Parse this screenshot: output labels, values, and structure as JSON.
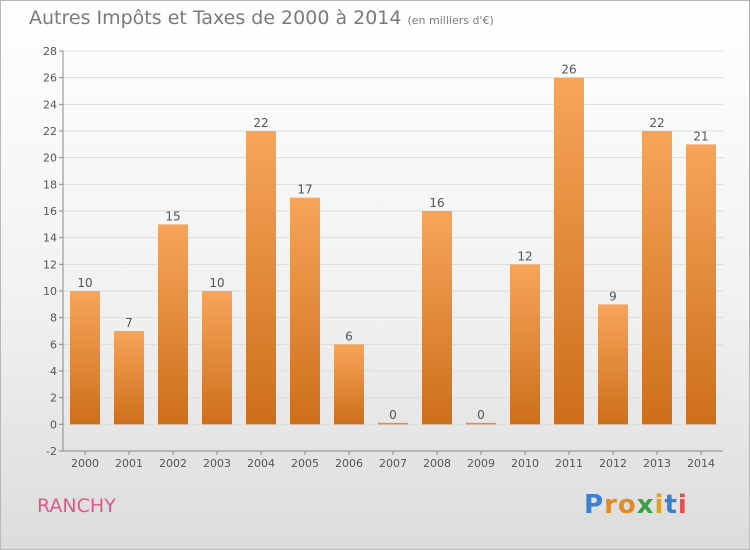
{
  "header": {
    "title": "Autres Impôts et Taxes de 2000 à 2014",
    "subtitle": "(en milliers d'€)"
  },
  "footer": {
    "commune": "RANCHY",
    "logo": "Proxiti"
  },
  "colors": {
    "bar_light": "#f7a55a",
    "bar_dark": "#cd6e1c",
    "grid": "#dddddd",
    "text": "#555555"
  },
  "chart_data": {
    "type": "bar",
    "title": "Autres Impôts et Taxes de 2000 à 2014",
    "subtitle": "(en milliers d'€)",
    "categories": [
      "2000",
      "2001",
      "2002",
      "2003",
      "2004",
      "2005",
      "2006",
      "2007",
      "2008",
      "2009",
      "2010",
      "2011",
      "2012",
      "2013",
      "2014"
    ],
    "values": [
      10,
      7,
      15,
      10,
      22,
      17,
      6,
      0,
      16,
      0,
      12,
      26,
      9,
      22,
      21
    ],
    "ylim": [
      -2,
      28
    ],
    "yticks": [
      -2,
      0,
      2,
      4,
      6,
      8,
      10,
      12,
      14,
      16,
      18,
      20,
      22,
      24,
      26,
      28
    ],
    "grid": true,
    "data_labels": true
  }
}
